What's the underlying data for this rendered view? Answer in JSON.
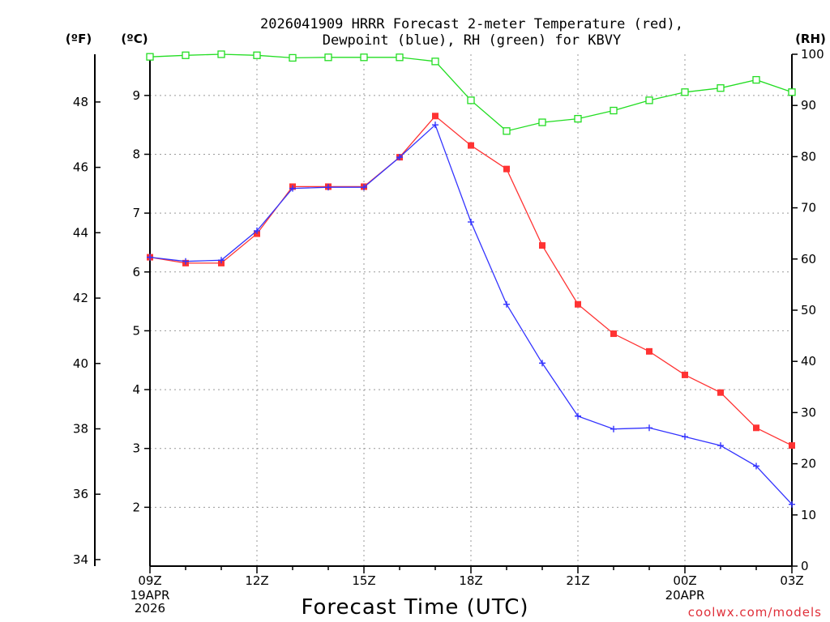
{
  "chart_data": {
    "type": "line",
    "title_lines": [
      "2026041909 HRRR Forecast 2-meter Temperature (red),",
      "Dewpoint (blue), RH (green) for KBVY"
    ],
    "xlabel": "Forecast Time (UTC)",
    "x_hours": [
      0,
      1,
      2,
      3,
      4,
      5,
      6,
      7,
      8,
      9,
      10,
      11,
      12,
      13,
      14,
      15,
      16,
      17,
      18
    ],
    "x_ticks": [
      {
        "hour": 0,
        "label": "09Z"
      },
      {
        "hour": 3,
        "label": "12Z"
      },
      {
        "hour": 6,
        "label": "15Z"
      },
      {
        "hour": 9,
        "label": "18Z"
      },
      {
        "hour": 12,
        "label": "21Z"
      },
      {
        "hour": 15,
        "label": "00Z"
      },
      {
        "hour": 18,
        "label": "03Z"
      }
    ],
    "date_labels": [
      {
        "hour": 0,
        "lines": [
          "19APR",
          "2026"
        ]
      },
      {
        "hour": 15,
        "lines": [
          "20APR"
        ]
      }
    ],
    "xlim": [
      0,
      18
    ],
    "axes": {
      "celsius": {
        "unit": "(ºC)",
        "ylim": [
          1.0,
          9.7
        ],
        "ticks": [
          2,
          3,
          4,
          5,
          6,
          7,
          8,
          9
        ]
      },
      "fahrenheit": {
        "unit": "(ºF)",
        "ticks": [
          34,
          36,
          38,
          40,
          42,
          44,
          46,
          48
        ]
      },
      "rh": {
        "unit": "(RH)",
        "ylim": [
          0,
          100
        ],
        "ticks": [
          0,
          10,
          20,
          30,
          40,
          50,
          60,
          70,
          80,
          90,
          100
        ]
      }
    },
    "series": [
      {
        "name": "Temperature",
        "axis": "celsius",
        "color": "#ff3333",
        "marker": "filled-square",
        "values": [
          6.25,
          6.15,
          6.15,
          6.65,
          7.45,
          7.45,
          7.45,
          7.95,
          8.65,
          8.15,
          7.75,
          6.45,
          5.45,
          4.95,
          4.65,
          4.25,
          3.95,
          3.35,
          3.05
        ]
      },
      {
        "name": "Dewpoint",
        "axis": "celsius",
        "color": "#3333ff",
        "marker": "plus",
        "values": [
          6.25,
          6.18,
          6.2,
          6.7,
          7.42,
          7.44,
          7.44,
          7.95,
          8.5,
          6.85,
          5.45,
          4.45,
          3.55,
          3.33,
          3.35,
          3.2,
          3.05,
          2.7,
          2.05
        ]
      },
      {
        "name": "RH",
        "axis": "rh",
        "color": "#22dd22",
        "marker": "open-square",
        "values": [
          99.5,
          99.8,
          100,
          99.8,
          99.3,
          99.4,
          99.4,
          99.4,
          98.6,
          91,
          85,
          86.7,
          87.4,
          89,
          91,
          92.6,
          93.4,
          95,
          92.6
        ]
      }
    ],
    "credit": "coolwx.com/models",
    "colors": {
      "background": "#ffffff",
      "axis": "#000000",
      "grid": "#999999",
      "credit": "#e0303a"
    }
  }
}
